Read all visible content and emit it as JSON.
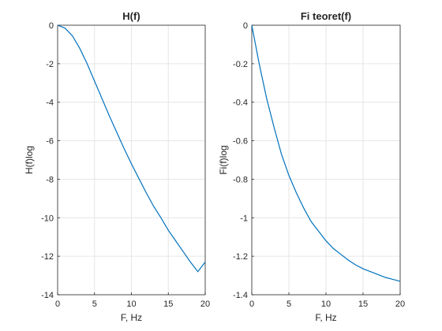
{
  "figure": {
    "background": "#ffffff",
    "line_color": "#0072bd",
    "grid_color": "#e6e6e6",
    "axis_color": "#262626"
  },
  "chart_data": [
    {
      "type": "line",
      "title": "H(f)",
      "xlabel": "F, Hz",
      "ylabel": "H(f)log",
      "xlim": [
        0,
        20
      ],
      "ylim": [
        -14,
        0
      ],
      "xticks": [
        0,
        5,
        10,
        15,
        20
      ],
      "yticks": [
        0,
        -2,
        -4,
        -6,
        -8,
        -10,
        -12,
        -14
      ],
      "grid": true,
      "series": [
        {
          "x": [
            0,
            1,
            2,
            3,
            4,
            5,
            6,
            7,
            8,
            9,
            10,
            11,
            12,
            13,
            14,
            15,
            16,
            17,
            18,
            19,
            20
          ],
          "y": [
            0,
            -0.15,
            -0.55,
            -1.2,
            -2.0,
            -2.9,
            -3.8,
            -4.7,
            -5.55,
            -6.4,
            -7.2,
            -7.95,
            -8.7,
            -9.4,
            -10.0,
            -10.65,
            -11.2,
            -11.75,
            -12.3,
            -12.8,
            -12.3
          ]
        }
      ]
    },
    {
      "type": "line",
      "title": "Fi teoret(f)",
      "xlabel": "F, Hz",
      "ylabel": "Fi(f)log",
      "xlim": [
        0,
        20
      ],
      "ylim": [
        -1.4,
        0
      ],
      "xticks": [
        0,
        5,
        10,
        15,
        20
      ],
      "yticks": [
        0,
        -0.2,
        -0.4,
        -0.6,
        -0.8,
        -1,
        -1.2,
        -1.4
      ],
      "grid": true,
      "series": [
        {
          "x": [
            0,
            1,
            2,
            3,
            4,
            5,
            6,
            7,
            8,
            9,
            10,
            11,
            12,
            13,
            14,
            15,
            16,
            17,
            18,
            19,
            20
          ],
          "y": [
            0,
            -0.2,
            -0.38,
            -0.53,
            -0.67,
            -0.78,
            -0.87,
            -0.95,
            -1.02,
            -1.07,
            -1.12,
            -1.16,
            -1.19,
            -1.22,
            -1.245,
            -1.265,
            -1.28,
            -1.295,
            -1.31,
            -1.32,
            -1.33
          ]
        }
      ]
    }
  ]
}
